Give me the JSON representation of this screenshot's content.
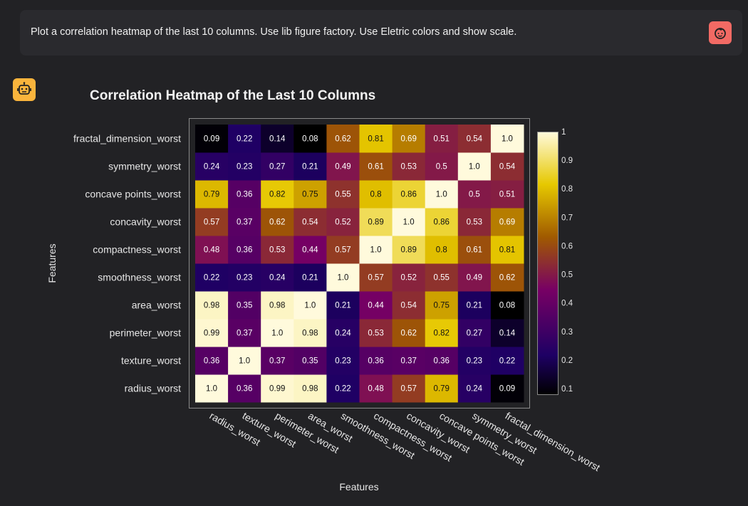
{
  "user_message": {
    "text": "Plot a correlation heatmap of the last 10 columns. Use lib figure factory. Use Eletric colors and show scale.",
    "avatar_icon": "user-face-icon"
  },
  "assistant": {
    "avatar_icon": "robot-icon"
  },
  "colors": {
    "background": "#222225",
    "user_avatar": "#f26a64",
    "bot_avatar": "#f9b43c"
  },
  "chart_data": {
    "type": "heatmap",
    "title": "Correlation Heatmap of the Last 10 Columns",
    "xlabel": "Features",
    "ylabel": "Features",
    "colorscale": "Electric",
    "zlim": [
      0.08,
      1.0
    ],
    "colorbar_ticks": [
      "0.1",
      "0.2",
      "0.3",
      "0.4",
      "0.5",
      "0.6",
      "0.7",
      "0.8",
      "0.9",
      "1"
    ],
    "x": [
      "radius_worst",
      "texture_worst",
      "perimeter_worst",
      "area_worst",
      "smoothness_worst",
      "compactness_worst",
      "concavity_worst",
      "concave points_worst",
      "symmetry_worst",
      "fractal_dimension_worst"
    ],
    "y": [
      "radius_worst",
      "texture_worst",
      "perimeter_worst",
      "area_worst",
      "smoothness_worst",
      "compactness_worst",
      "concavity_worst",
      "concave points_worst",
      "symmetry_worst",
      "fractal_dimension_worst"
    ],
    "z": [
      [
        1.0,
        0.36,
        0.99,
        0.98,
        0.22,
        0.48,
        0.57,
        0.79,
        0.24,
        0.09
      ],
      [
        0.36,
        1.0,
        0.37,
        0.35,
        0.23,
        0.36,
        0.37,
        0.36,
        0.23,
        0.22
      ],
      [
        0.99,
        0.37,
        1.0,
        0.98,
        0.24,
        0.53,
        0.62,
        0.82,
        0.27,
        0.14
      ],
      [
        0.98,
        0.35,
        0.98,
        1.0,
        0.21,
        0.44,
        0.54,
        0.75,
        0.21,
        0.08
      ],
      [
        0.22,
        0.23,
        0.24,
        0.21,
        1.0,
        0.57,
        0.52,
        0.55,
        0.49,
        0.62
      ],
      [
        0.48,
        0.36,
        0.53,
        0.44,
        0.57,
        1.0,
        0.89,
        0.8,
        0.61,
        0.81
      ],
      [
        0.57,
        0.37,
        0.62,
        0.54,
        0.52,
        0.89,
        1.0,
        0.86,
        0.53,
        0.69
      ],
      [
        0.79,
        0.36,
        0.82,
        0.75,
        0.55,
        0.8,
        0.86,
        1.0,
        0.5,
        0.51
      ],
      [
        0.24,
        0.23,
        0.27,
        0.21,
        0.49,
        0.61,
        0.53,
        0.5,
        1.0,
        0.54
      ],
      [
        0.09,
        0.22,
        0.14,
        0.08,
        0.62,
        0.81,
        0.69,
        0.51,
        0.54,
        1.0
      ]
    ],
    "labels": [
      [
        "1.0",
        "0.36",
        "0.99",
        "0.98",
        "0.22",
        "0.48",
        "0.57",
        "0.79",
        "0.24",
        "0.09"
      ],
      [
        "0.36",
        "1.0",
        "0.37",
        "0.35",
        "0.23",
        "0.36",
        "0.37",
        "0.36",
        "0.23",
        "0.22"
      ],
      [
        "0.99",
        "0.37",
        "1.0",
        "0.98",
        "0.24",
        "0.53",
        "0.62",
        "0.82",
        "0.27",
        "0.14"
      ],
      [
        "0.98",
        "0.35",
        "0.98",
        "1.0",
        "0.21",
        "0.44",
        "0.54",
        "0.75",
        "0.21",
        "0.08"
      ],
      [
        "0.22",
        "0.23",
        "0.24",
        "0.21",
        "1.0",
        "0.57",
        "0.52",
        "0.55",
        "0.49",
        "0.62"
      ],
      [
        "0.48",
        "0.36",
        "0.53",
        "0.44",
        "0.57",
        "1.0",
        "0.89",
        "0.8",
        "0.61",
        "0.81"
      ],
      [
        "0.57",
        "0.37",
        "0.62",
        "0.54",
        "0.52",
        "0.89",
        "1.0",
        "0.86",
        "0.53",
        "0.69"
      ],
      [
        "0.79",
        "0.36",
        "0.82",
        "0.75",
        "0.55",
        "0.8",
        "0.86",
        "1.0",
        "0.5",
        "0.51"
      ],
      [
        "0.24",
        "0.23",
        "0.27",
        "0.21",
        "0.49",
        "0.61",
        "0.53",
        "0.5",
        "1.0",
        "0.54"
      ],
      [
        "0.09",
        "0.22",
        "0.14",
        "0.08",
        "0.62",
        "0.81",
        "0.69",
        "0.51",
        "0.54",
        "1.0"
      ]
    ]
  }
}
